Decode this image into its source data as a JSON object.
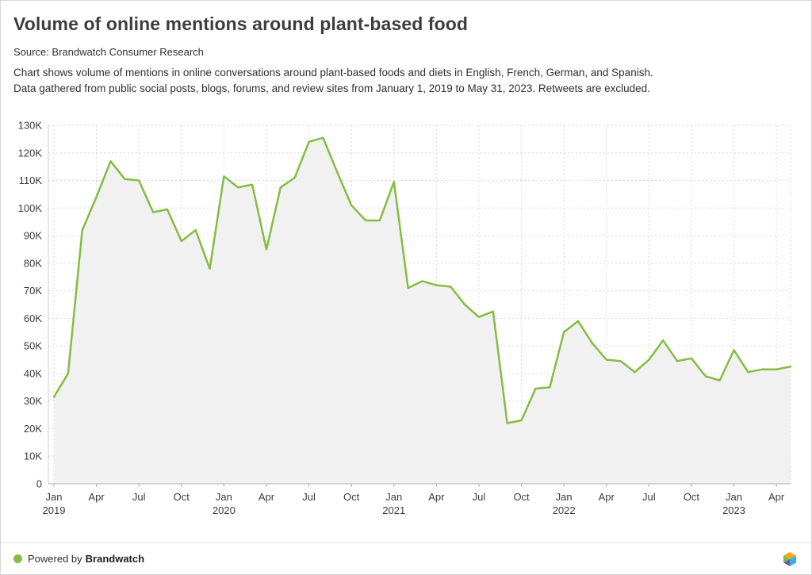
{
  "header": {
    "title": "Volume of online mentions around plant-based food",
    "source": "Source: Brandwatch Consumer Research",
    "description_line1": "Chart shows volume of mentions in online conversations around plant-based foods and diets in English, French, German, and Spanish.",
    "description_line2": "Data gathered from public social posts, blogs, forums, and review sites from January 1, 2019 to May 31, 2023. Retweets are excluded."
  },
  "footer": {
    "powered_by": "Powered by",
    "brand": "Brandwatch",
    "dot_color": "#84bd41"
  },
  "chart_data": {
    "type": "area",
    "title": "Volume of online mentions around plant-based food",
    "x": [
      "Jan 2019",
      "Feb 2019",
      "Mar 2019",
      "Apr 2019",
      "May 2019",
      "Jun 2019",
      "Jul 2019",
      "Aug 2019",
      "Sep 2019",
      "Oct 2019",
      "Nov 2019",
      "Dec 2019",
      "Jan 2020",
      "Feb 2020",
      "Mar 2020",
      "Apr 2020",
      "May 2020",
      "Jun 2020",
      "Jul 2020",
      "Aug 2020",
      "Sep 2020",
      "Oct 2020",
      "Nov 2020",
      "Dec 2020",
      "Jan 2021",
      "Feb 2021",
      "Mar 2021",
      "Apr 2021",
      "May 2021",
      "Jun 2021",
      "Jul 2021",
      "Aug 2021",
      "Sep 2021",
      "Oct 2021",
      "Nov 2021",
      "Dec 2021",
      "Jan 2022",
      "Feb 2022",
      "Mar 2022",
      "Apr 2022",
      "May 2022",
      "Jun 2022",
      "Jul 2022",
      "Aug 2022",
      "Sep 2022",
      "Oct 2022",
      "Nov 2022",
      "Dec 2022",
      "Jan 2023",
      "Feb 2023",
      "Mar 2023",
      "Apr 2023",
      "May 2023"
    ],
    "values": [
      31500,
      40000,
      92000,
      104000,
      117000,
      110500,
      110000,
      98500,
      99500,
      88000,
      92000,
      78000,
      111500,
      107500,
      108500,
      85000,
      107500,
      111000,
      124000,
      125500,
      113000,
      101000,
      95500,
      95500,
      109500,
      71000,
      73500,
      72000,
      71500,
      65000,
      60500,
      62500,
      22000,
      23000,
      34500,
      35000,
      55000,
      59000,
      51000,
      45000,
      44500,
      40500,
      45000,
      52000,
      44500,
      45500,
      39000,
      37500,
      48500,
      40500,
      41500,
      41500,
      42500
    ],
    "ylabel": "",
    "xlabel": "",
    "ylim": [
      0,
      130000
    ],
    "y_tick_step": 10000,
    "y_tick_labels": [
      "0",
      "10K",
      "20K",
      "30K",
      "40K",
      "50K",
      "60K",
      "70K",
      "80K",
      "90K",
      "100K",
      "110K",
      "120K",
      "130K"
    ],
    "x_tick_every_months": 3,
    "grid": "dashed",
    "legend": "none",
    "line_color": "#84bd41",
    "fill_color": "#f1f1f1",
    "axis_color": "#b0b0b0",
    "grid_color": "#d9d9d9",
    "tick_label_color": "#3c3c3c"
  }
}
